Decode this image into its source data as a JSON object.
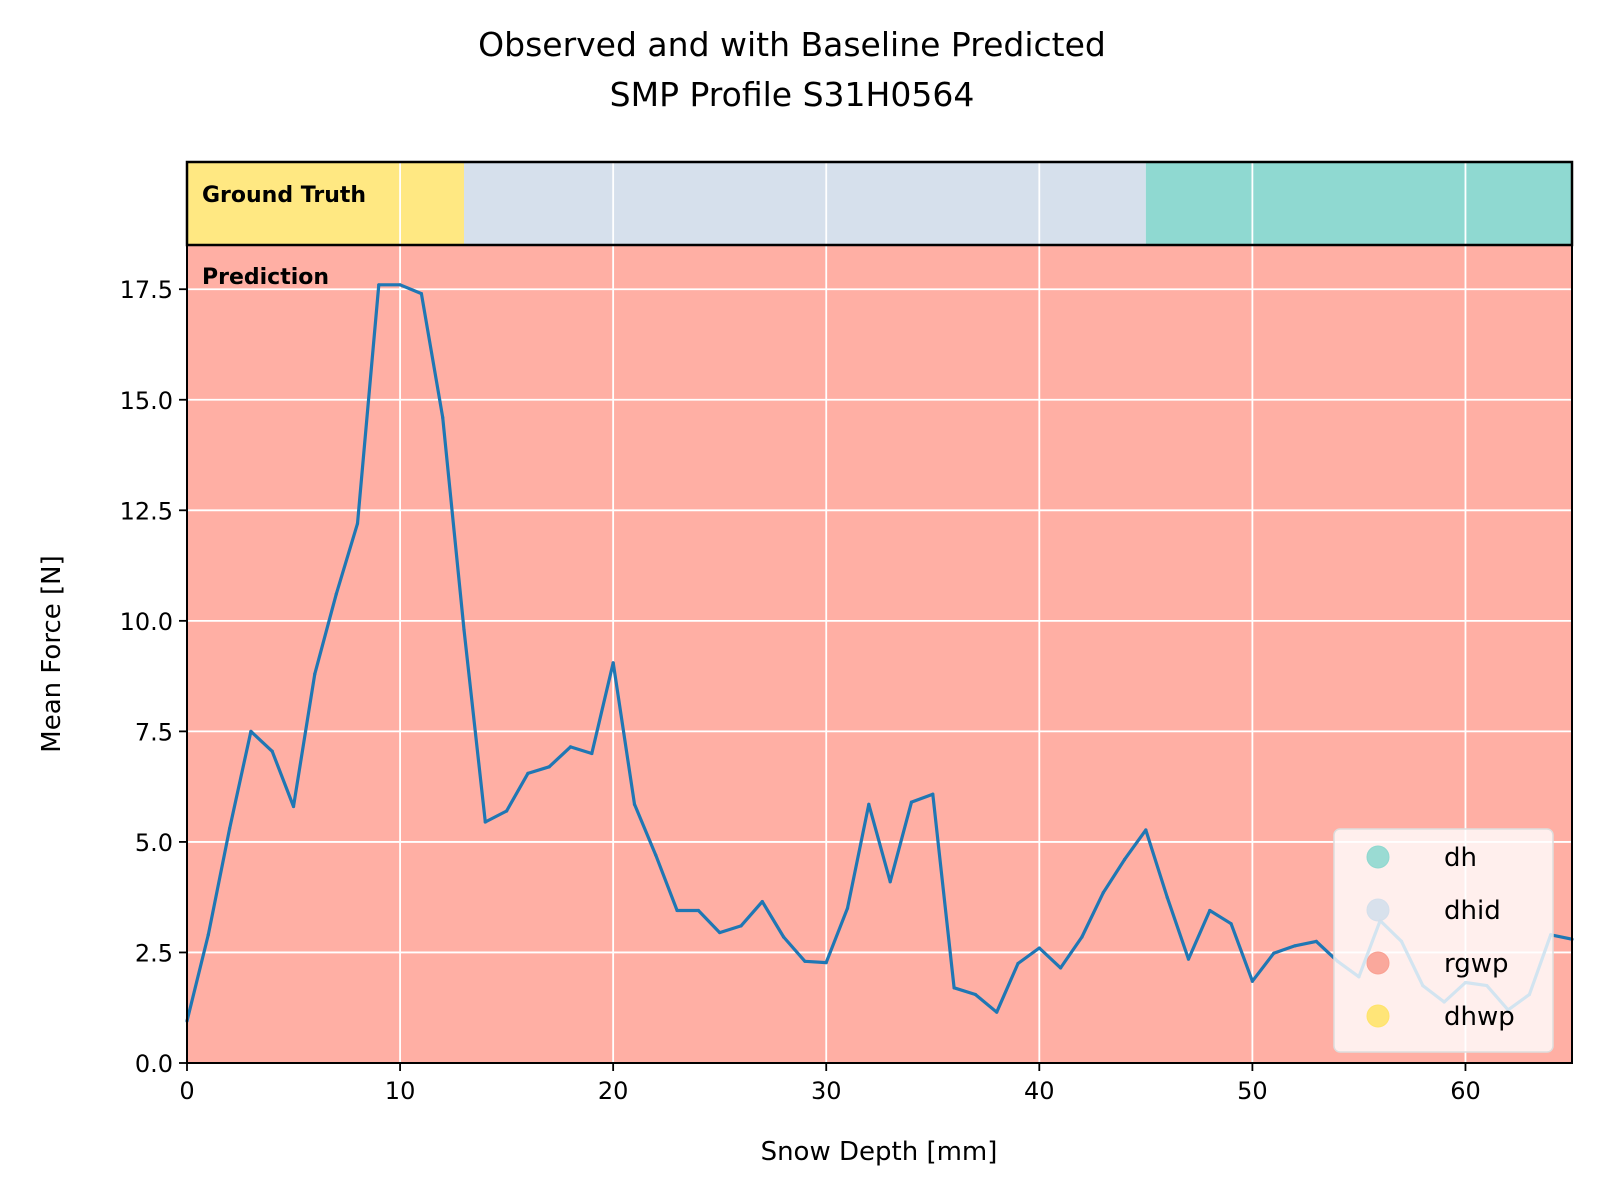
{
  "chart_data": {
    "type": "line",
    "title_line1": "Observed and with Baseline Predicted",
    "title_line2": "SMP Profile S31H0564",
    "xlabel": "Snow Depth [mm]",
    "ylabel": "Mean Force [N]",
    "xlim": [
      0,
      65
    ],
    "ylim": [
      0,
      18.5
    ],
    "xticks": [
      0,
      10,
      20,
      30,
      40,
      50,
      60
    ],
    "yticks": [
      0.0,
      2.5,
      5.0,
      7.5,
      10.0,
      12.5,
      15.0,
      17.5
    ],
    "xtick_labels": [
      "0",
      "10",
      "20",
      "30",
      "40",
      "50",
      "60"
    ],
    "ytick_labels": [
      "0.0",
      "2.5",
      "5.0",
      "7.5",
      "10.0",
      "12.5",
      "15.0",
      "17.5"
    ],
    "grid": true,
    "line_color": "#1f77b4",
    "series": [
      {
        "x": [
          0,
          1,
          2,
          3,
          4,
          5,
          6,
          7,
          8,
          9,
          10,
          11,
          12,
          13,
          14,
          15,
          16,
          17,
          18,
          19,
          20,
          21,
          22,
          23,
          24,
          25,
          26,
          27,
          28,
          29,
          30,
          31,
          32,
          33,
          34,
          35,
          36,
          37,
          38,
          39,
          40,
          41,
          42,
          43,
          44,
          45,
          46,
          47,
          48,
          49,
          50,
          51,
          52,
          53,
          54,
          55,
          56,
          57,
          58,
          59,
          60,
          61,
          62,
          63,
          64,
          65
        ],
        "values": [
          0.95,
          2.9,
          5.3,
          7.5,
          7.05,
          5.8,
          8.8,
          10.6,
          12.2,
          17.6,
          17.6,
          17.4,
          14.6,
          9.8,
          5.45,
          5.7,
          6.55,
          6.7,
          7.15,
          7.0,
          9.05,
          5.85,
          4.7,
          3.45,
          3.45,
          2.95,
          3.1,
          3.65,
          2.85,
          2.3,
          2.27,
          3.5,
          5.85,
          4.1,
          5.9,
          6.08,
          1.7,
          1.55,
          1.15,
          2.25,
          2.6,
          2.15,
          2.85,
          3.85,
          4.6,
          5.27,
          3.75,
          2.35,
          3.45,
          3.15,
          1.85,
          2.48,
          2.65,
          2.75,
          2.3,
          1.95,
          3.22,
          2.75,
          1.75,
          1.38,
          1.82,
          1.75,
          1.2,
          1.55,
          2.9,
          2.8
        ]
      }
    ],
    "ground_truth": {
      "label": "Ground Truth",
      "segments": [
        {
          "start": 0,
          "end": 13,
          "class": "dhwp"
        },
        {
          "start": 13,
          "end": 45,
          "class": "dhid"
        },
        {
          "start": 45,
          "end": 65,
          "class": "dh"
        }
      ]
    },
    "prediction": {
      "label": "Prediction",
      "segments": [
        {
          "start": 0,
          "end": 65,
          "class": "rgwp"
        }
      ]
    },
    "classes": {
      "dh": "#8fd9d1",
      "dhid": "#d6e0ec",
      "rgwp": "#ffafa4",
      "dhwp": "#ffe882"
    },
    "legend": {
      "placement": "bottom-right",
      "entries": [
        {
          "label": "dh",
          "color": "#8fd8cf"
        },
        {
          "label": "dhid",
          "color": "#d4dfeb"
        },
        {
          "label": "rgwp",
          "color": "#f9a092"
        },
        {
          "label": "dhwp",
          "color": "#ffe36a"
        }
      ]
    }
  }
}
